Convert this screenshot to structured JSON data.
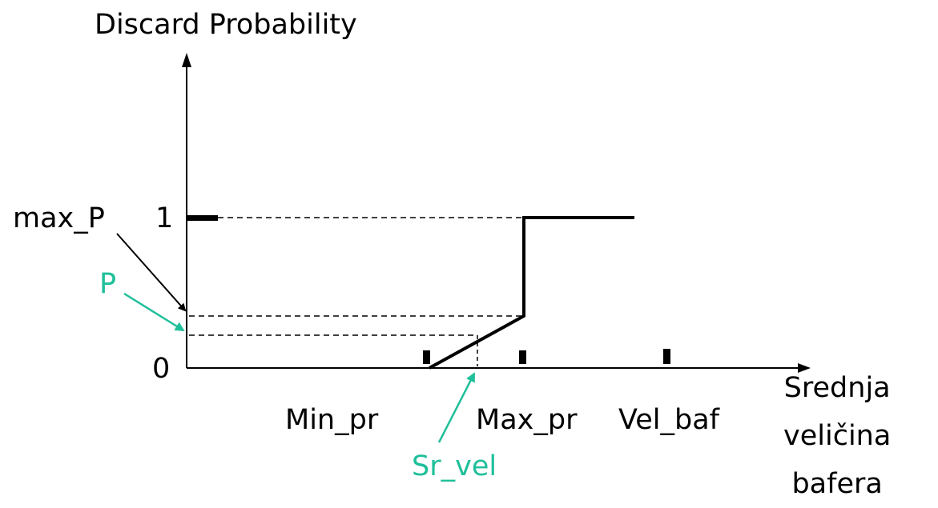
{
  "diagram": {
    "y_axis_title": "Discard Probability",
    "x_axis_title": [
      "Srednja",
      "veličina",
      "bafera"
    ],
    "labels": {
      "max_p": "max_P",
      "one": "1",
      "p": "P",
      "zero": "0",
      "min_pr": "Min_pr",
      "max_pr": "Max_pr",
      "vel_baf": "Vel_baf",
      "sr_vel": "Sr_vel"
    },
    "colors": {
      "main": "#000000",
      "highlight": "#1fbf9a"
    }
  }
}
